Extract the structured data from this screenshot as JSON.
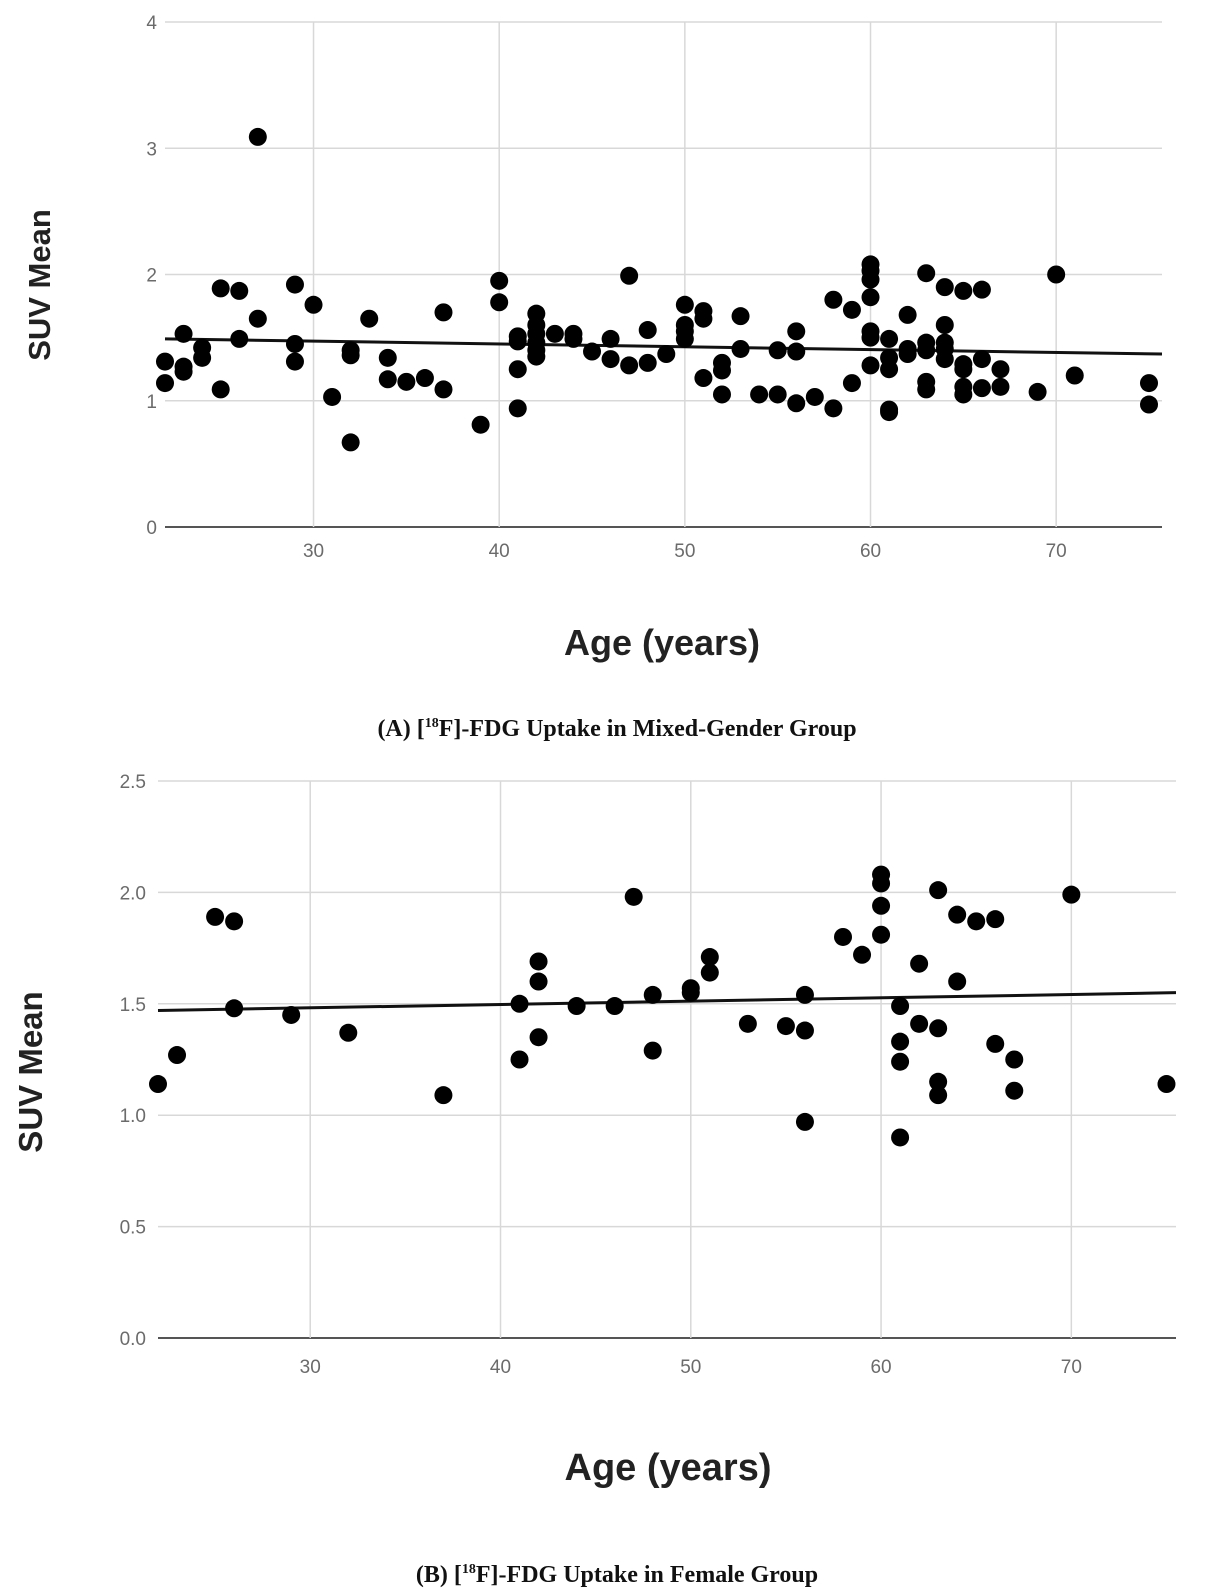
{
  "figures": [
    {
      "caption_label": "(A)",
      "caption_text_pre": " [",
      "caption_sup": "18",
      "caption_text_post": "F]-FDG Uptake in Mixed-Gender Group"
    },
    {
      "caption_label": "(B)",
      "caption_text_pre": " [",
      "caption_sup": "18",
      "caption_text_post": "F]-FDG Uptake in Female Group"
    }
  ],
  "chart_data": [
    {
      "type": "scatter",
      "title": "",
      "xlabel": "Age (years)",
      "ylabel": "SUV Mean",
      "xlim": [
        22,
        75.7
      ],
      "ylim": [
        0,
        4
      ],
      "xticks": [
        30,
        40,
        50,
        60,
        70
      ],
      "yticks": [
        0,
        1,
        2,
        3,
        4
      ],
      "ytick_labels": [
        "0",
        "1",
        "2",
        "3",
        "4"
      ],
      "grid": true,
      "trendline": {
        "x": [
          22,
          75.7
        ],
        "y": [
          1.49,
          1.37
        ]
      },
      "points": [
        [
          22,
          1.31
        ],
        [
          22,
          1.14
        ],
        [
          23,
          1.53
        ],
        [
          23,
          1.27
        ],
        [
          23,
          1.23
        ],
        [
          24,
          1.42
        ],
        [
          24,
          1.34
        ],
        [
          25,
          1.89
        ],
        [
          25,
          1.09
        ],
        [
          26,
          1.87
        ],
        [
          26,
          1.49
        ],
        [
          27,
          3.09
        ],
        [
          27,
          1.65
        ],
        [
          29,
          1.92
        ],
        [
          29,
          1.45
        ],
        [
          29,
          1.31
        ],
        [
          30,
          1.76
        ],
        [
          31,
          1.03
        ],
        [
          32,
          1.4
        ],
        [
          32,
          1.36
        ],
        [
          32,
          0.67
        ],
        [
          33,
          1.65
        ],
        [
          34,
          1.34
        ],
        [
          34,
          1.17
        ],
        [
          35,
          1.15
        ],
        [
          36,
          1.18
        ],
        [
          37,
          1.7
        ],
        [
          37,
          1.09
        ],
        [
          39,
          0.81
        ],
        [
          40,
          1.95
        ],
        [
          40,
          1.78
        ],
        [
          41,
          1.51
        ],
        [
          41,
          1.47
        ],
        [
          41,
          1.25
        ],
        [
          41,
          0.94
        ],
        [
          42,
          1.69
        ],
        [
          42,
          1.6
        ],
        [
          42,
          1.53
        ],
        [
          42,
          1.46
        ],
        [
          42,
          1.4
        ],
        [
          42,
          1.35
        ],
        [
          43,
          1.53
        ],
        [
          44,
          1.53
        ],
        [
          44,
          1.49
        ],
        [
          45,
          1.39
        ],
        [
          46,
          1.49
        ],
        [
          46,
          1.33
        ],
        [
          47,
          1.99
        ],
        [
          47,
          1.28
        ],
        [
          48,
          1.56
        ],
        [
          48,
          1.3
        ],
        [
          49,
          1.37
        ],
        [
          50,
          1.76
        ],
        [
          50,
          1.6
        ],
        [
          50,
          1.55
        ],
        [
          50,
          1.49
        ],
        [
          51,
          1.71
        ],
        [
          51,
          1.65
        ],
        [
          51,
          1.18
        ],
        [
          52,
          1.3
        ],
        [
          52,
          1.24
        ],
        [
          52,
          1.05
        ],
        [
          53,
          1.67
        ],
        [
          53,
          1.41
        ],
        [
          54,
          1.05
        ],
        [
          55,
          1.4
        ],
        [
          55,
          1.05
        ],
        [
          56,
          1.55
        ],
        [
          56,
          1.39
        ],
        [
          56,
          0.98
        ],
        [
          57,
          1.03
        ],
        [
          58,
          1.8
        ],
        [
          58,
          0.94
        ],
        [
          59,
          1.72
        ],
        [
          59,
          1.14
        ],
        [
          60,
          2.08
        ],
        [
          60,
          2.03
        ],
        [
          60,
          1.96
        ],
        [
          60,
          1.82
        ],
        [
          60,
          1.55
        ],
        [
          60,
          1.5
        ],
        [
          60,
          1.28
        ],
        [
          61,
          1.49
        ],
        [
          61,
          1.34
        ],
        [
          61,
          1.25
        ],
        [
          61,
          0.93
        ],
        [
          61,
          0.91
        ],
        [
          62,
          1.68
        ],
        [
          62,
          1.41
        ],
        [
          62,
          1.37
        ],
        [
          63,
          2.01
        ],
        [
          63,
          1.46
        ],
        [
          63,
          1.4
        ],
        [
          63,
          1.15
        ],
        [
          63,
          1.09
        ],
        [
          64,
          1.9
        ],
        [
          64,
          1.6
        ],
        [
          64,
          1.46
        ],
        [
          64,
          1.41
        ],
        [
          64,
          1.33
        ],
        [
          65,
          1.87
        ],
        [
          65,
          1.29
        ],
        [
          65,
          1.25
        ],
        [
          65,
          1.11
        ],
        [
          65,
          1.05
        ],
        [
          66,
          1.88
        ],
        [
          66,
          1.33
        ],
        [
          66,
          1.1
        ],
        [
          67,
          1.25
        ],
        [
          67,
          1.11
        ],
        [
          69,
          1.07
        ],
        [
          70,
          2
        ],
        [
          71,
          1.2
        ],
        [
          75,
          1.14
        ],
        [
          75,
          0.97
        ]
      ]
    },
    {
      "type": "scatter",
      "title": "",
      "xlabel": "Age (years)",
      "ylabel": "SUV Mean",
      "xlim": [
        22,
        75.5
      ],
      "ylim": [
        0,
        2.5
      ],
      "xticks": [
        30,
        40,
        50,
        60,
        70
      ],
      "yticks": [
        0,
        0.5,
        1,
        1.5,
        2,
        2.5
      ],
      "ytick_labels": [
        "0.0",
        "0.5",
        "1.0",
        "1.5",
        "2.0",
        "2.5"
      ],
      "grid": true,
      "trendline": {
        "x": [
          22,
          75.5
        ],
        "y": [
          1.47,
          1.55
        ]
      },
      "points": [
        [
          22,
          1.14
        ],
        [
          23,
          1.27
        ],
        [
          25,
          1.89
        ],
        [
          26,
          1.87
        ],
        [
          26,
          1.48
        ],
        [
          29,
          1.45
        ],
        [
          32,
          1.37
        ],
        [
          37,
          1.09
        ],
        [
          41,
          1.5
        ],
        [
          41,
          1.25
        ],
        [
          42,
          1.69
        ],
        [
          42,
          1.6
        ],
        [
          42,
          1.35
        ],
        [
          44,
          1.49
        ],
        [
          46,
          1.49
        ],
        [
          47,
          1.98
        ],
        [
          48,
          1.54
        ],
        [
          48,
          1.29
        ],
        [
          50,
          1.57
        ],
        [
          50,
          1.55
        ],
        [
          51,
          1.71
        ],
        [
          51,
          1.64
        ],
        [
          53,
          1.41
        ],
        [
          55,
          1.4
        ],
        [
          56,
          1.54
        ],
        [
          56,
          1.38
        ],
        [
          56,
          0.97
        ],
        [
          58,
          1.8
        ],
        [
          59,
          1.72
        ],
        [
          60,
          2.08
        ],
        [
          60,
          2.04
        ],
        [
          60,
          1.94
        ],
        [
          60,
          1.81
        ],
        [
          61,
          1.49
        ],
        [
          61,
          1.33
        ],
        [
          61,
          1.24
        ],
        [
          61,
          0.9
        ],
        [
          62,
          1.68
        ],
        [
          62,
          1.41
        ],
        [
          63,
          2.01
        ],
        [
          63,
          1.39
        ],
        [
          63,
          1.15
        ],
        [
          63,
          1.09
        ],
        [
          64,
          1.9
        ],
        [
          64,
          1.6
        ],
        [
          65,
          1.87
        ],
        [
          66,
          1.88
        ],
        [
          66,
          1.32
        ],
        [
          67,
          1.25
        ],
        [
          67,
          1.11
        ],
        [
          70,
          1.99
        ],
        [
          75,
          1.14
        ]
      ]
    }
  ]
}
